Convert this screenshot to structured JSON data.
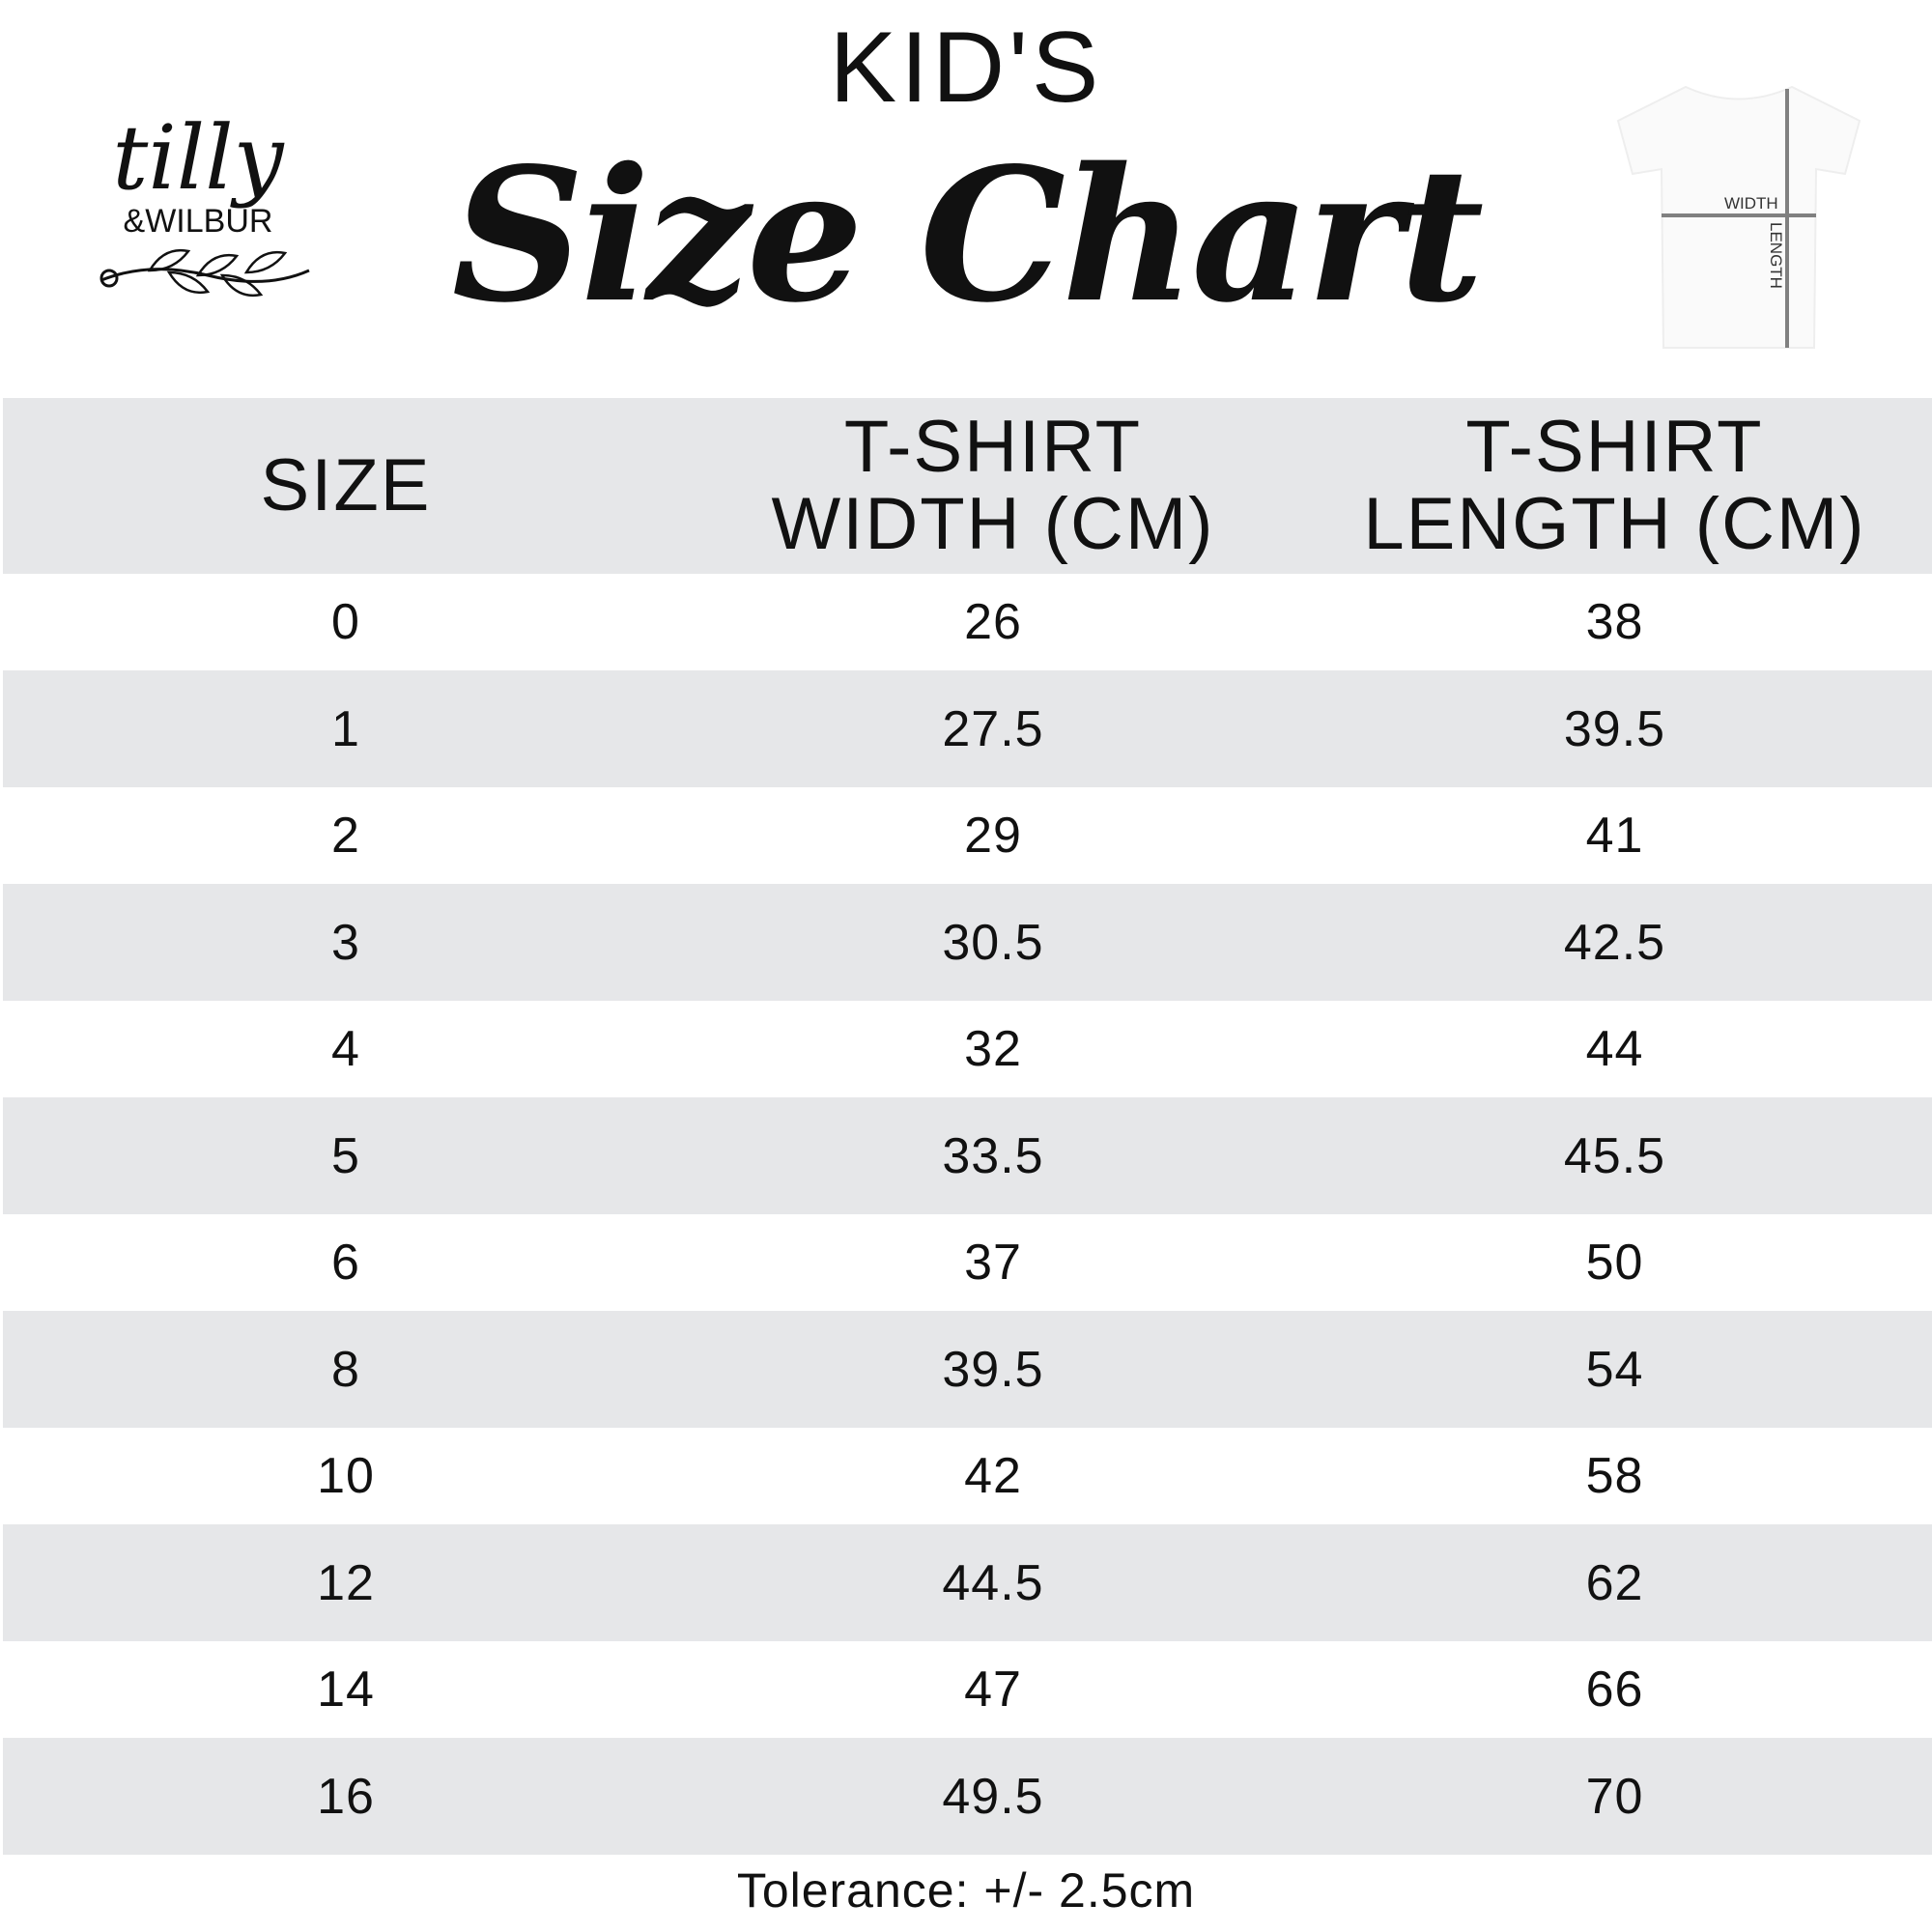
{
  "header": {
    "kicker": "KID'S",
    "title": "Size Chart"
  },
  "logo": {
    "text": "tilly &WILBUR"
  },
  "diagram": {
    "width_label": "WIDTH",
    "length_label": "LENGTH",
    "line_color": "#808080"
  },
  "table": {
    "columns": [
      "SIZE",
      "T-SHIRT WIDTH (CM)",
      "T-SHIRT LENGTH (CM)"
    ],
    "col_lines": [
      [
        "SIZE"
      ],
      [
        "T-SHIRT",
        "WIDTH (CM)"
      ],
      [
        "T-SHIRT",
        "LENGTH (CM)"
      ]
    ],
    "rows": [
      [
        "0",
        "26",
        "38"
      ],
      [
        "1",
        "27.5",
        "39.5"
      ],
      [
        "2",
        "29",
        "41"
      ],
      [
        "3",
        "30.5",
        "42.5"
      ],
      [
        "4",
        "32",
        "44"
      ],
      [
        "5",
        "33.5",
        "45.5"
      ],
      [
        "6",
        "37",
        "50"
      ],
      [
        "8",
        "39.5",
        "54"
      ],
      [
        "10",
        "42",
        "58"
      ],
      [
        "12",
        "44.5",
        "62"
      ],
      [
        "14",
        "47",
        "66"
      ],
      [
        "16",
        "49.5",
        "70"
      ]
    ],
    "stripe_color": "#e6e7e9"
  },
  "footer": {
    "tolerance": "Tolerance: +/- 2.5cm"
  }
}
